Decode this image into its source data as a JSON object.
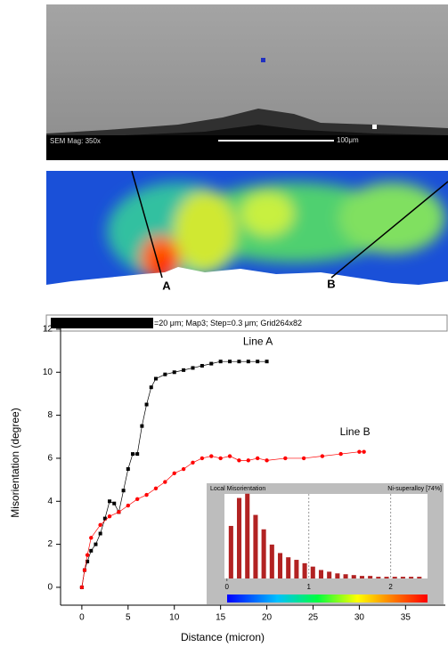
{
  "sem_image": {
    "magnification_label": "SEM Mag: 350x",
    "scale_label": "100μm"
  },
  "ebsd_map": {
    "labels": [
      "A",
      "B"
    ],
    "caption": "=20 μm; Map3; Step=0.3 μm; Grid264x82"
  },
  "chart_data": [
    {
      "type": "line",
      "x_label": "Distance (micron)",
      "y_label": "Misorientation (degree)",
      "xlim": [
        -2.3,
        39.3
      ],
      "ylim": [
        -0.83,
        12.08
      ],
      "xticks": [
        0,
        5,
        10,
        15,
        20,
        25,
        30,
        35
      ],
      "yticks": [
        0,
        2,
        4,
        6,
        8,
        10,
        12
      ],
      "series": [
        {
          "name": "Line A",
          "color": "#000000",
          "marker": "square",
          "x": [
            0,
            0.3,
            0.6,
            1,
            1.5,
            2,
            2.5,
            3,
            3.5,
            4,
            4.5,
            5,
            5.5,
            6,
            6.5,
            7,
            7.5,
            8,
            9,
            10,
            11,
            12,
            13,
            14,
            15,
            16,
            17,
            18,
            19,
            20
          ],
          "values": [
            0,
            0.8,
            1.2,
            1.7,
            2.0,
            2.5,
            3.2,
            4.0,
            3.9,
            3.5,
            4.5,
            5.5,
            6.2,
            6.2,
            7.5,
            8.5,
            9.3,
            9.7,
            9.9,
            10.0,
            10.1,
            10.2,
            10.3,
            10.4,
            10.5,
            10.5,
            10.5,
            10.5,
            10.5,
            10.5
          ]
        },
        {
          "name": "Line B",
          "color": "#ff0000",
          "marker": "circle",
          "x": [
            0,
            0.3,
            0.6,
            1,
            2,
            3,
            4,
            5,
            6,
            7,
            8,
            9,
            10,
            11,
            12,
            13,
            14,
            15,
            16,
            17,
            18,
            19,
            20,
            22,
            24,
            26,
            28,
            30,
            30.5
          ],
          "values": [
            0,
            0.8,
            1.5,
            2.3,
            2.9,
            3.3,
            3.5,
            3.8,
            4.1,
            4.3,
            4.6,
            4.9,
            5.3,
            5.5,
            5.8,
            6.0,
            6.1,
            6.0,
            6.1,
            5.9,
            5.9,
            6.0,
            5.9,
            6.0,
            6.0,
            6.1,
            6.2,
            6.3,
            6.3
          ]
        }
      ]
    },
    {
      "type": "histogram",
      "title": "Local Misorientation",
      "annotation": "Ni-superalloy [74%]",
      "color": "#b22222",
      "xlim": [
        -0.03,
        2.45
      ],
      "ylim": [
        0,
        1.05
      ],
      "xticks": [
        0,
        1,
        2
      ],
      "bins": [
        0,
        0.1,
        0.2,
        0.3,
        0.4,
        0.5,
        0.6,
        0.7,
        0.8,
        0.9,
        1.0,
        1.1,
        1.2,
        1.3,
        1.4,
        1.5,
        1.6,
        1.7,
        1.8,
        1.9,
        2.0,
        2.1,
        2.2,
        2.3,
        2.4
      ],
      "values": [
        0.62,
        0.95,
        1.0,
        0.75,
        0.58,
        0.4,
        0.3,
        0.25,
        0.22,
        0.18,
        0.14,
        0.1,
        0.08,
        0.06,
        0.05,
        0.04,
        0.03,
        0.03,
        0.02,
        0.02,
        0.02,
        0.02,
        0.02,
        0.02
      ]
    }
  ]
}
